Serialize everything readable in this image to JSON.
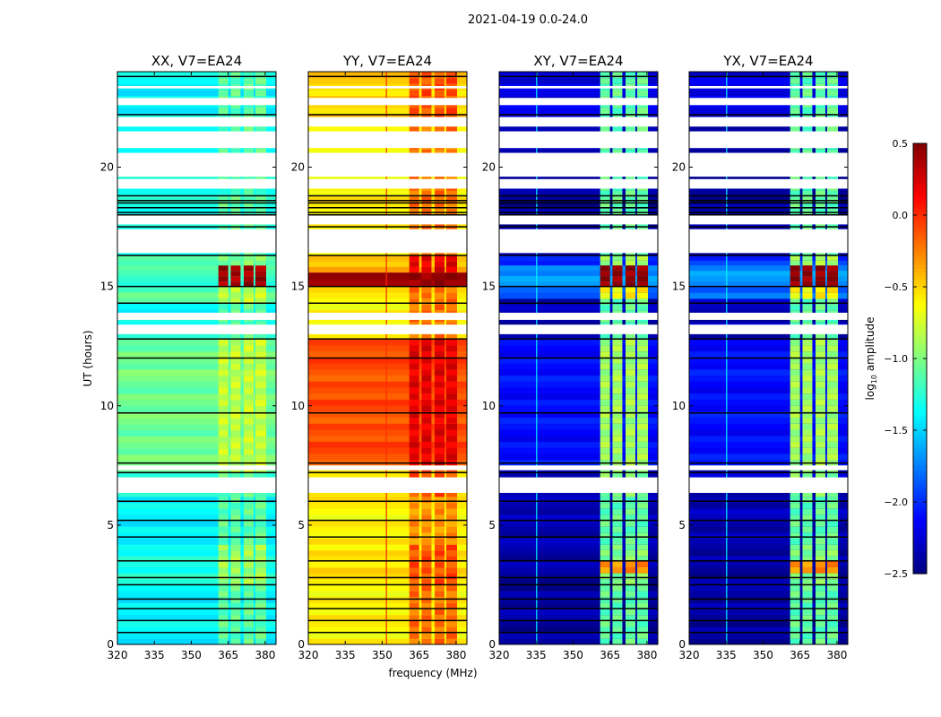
{
  "chart_data": {
    "type": "heatmap",
    "title": "2021-04-19 0.0-24.0",
    "xlabel": "frequency (MHz)",
    "ylabel": "UT (hours)",
    "xlim": [
      320,
      384.4
    ],
    "ylim": [
      0,
      24
    ],
    "xticks": [
      "320",
      "335",
      "350",
      "365",
      "380"
    ],
    "xtick_values": [
      320,
      335,
      350,
      365,
      380
    ],
    "yticks": [
      "0",
      "5",
      "10",
      "15",
      "20"
    ],
    "ytick_values": [
      0,
      5,
      10,
      15,
      20
    ],
    "colorbar": {
      "label_main": "log",
      "label_sub": "10",
      "label_rest": " amplitude",
      "range": [
        -2.5,
        0.5
      ],
      "ticks": [
        "0.5",
        "0.0",
        "−0.5",
        "−1.0",
        "−1.5",
        "−2.0",
        "−2.5"
      ],
      "tick_values": [
        0.5,
        0.0,
        -0.5,
        -1.0,
        -1.5,
        -2.0,
        -2.5
      ],
      "colormap": "jet"
    },
    "rfi_channels_mhz": [
      [
        361,
        365
      ],
      [
        366,
        370
      ],
      [
        371.3,
        375.3
      ],
      [
        376,
        380.4
      ]
    ],
    "flagged_hours": [
      [
        6.35,
        7.0
      ],
      [
        7.3,
        7.5
      ],
      [
        13.0,
        13.4
      ],
      [
        13.6,
        13.9
      ],
      [
        16.4,
        17.4
      ],
      [
        17.6,
        18.0
      ],
      [
        19.1,
        19.5
      ],
      [
        19.6,
        20.6
      ],
      [
        20.8,
        21.5
      ],
      [
        21.7,
        22.1
      ],
      [
        22.6,
        22.9
      ],
      [
        23.3,
        23.4
      ]
    ],
    "gap_lines_hours": [
      0.5,
      1.0,
      1.5,
      1.9,
      2.5,
      2.8,
      3.5,
      4.5,
      5.2,
      6.0,
      7.2,
      7.6,
      9.7,
      12.0,
      12.8,
      14.3,
      15.0,
      16.3,
      17.5,
      18.0,
      18.1,
      18.3,
      18.5,
      18.6,
      18.8,
      22.2,
      23.8
    ],
    "panels": [
      {
        "title": "XX, V7=EA24",
        "segments": [
          [
            0,
            2.5,
            -1.4,
            -1.1
          ],
          [
            2.5,
            4.2,
            -1.3,
            -0.9
          ],
          [
            4.2,
            6.2,
            -1.4,
            -1.1
          ],
          [
            6.2,
            7.2,
            -1.3,
            -1.1
          ],
          [
            7.2,
            12.8,
            -1.05,
            -0.8
          ],
          [
            12.8,
            14.3,
            -1.35,
            -1.1
          ],
          [
            14.3,
            15.0,
            -1.1,
            -0.8
          ],
          [
            15.0,
            15.9,
            -1.2,
            0.4
          ],
          [
            15.9,
            16.3,
            -1.2,
            -1.0
          ],
          [
            16.3,
            18.8,
            -1.3,
            -1.1
          ],
          [
            18.8,
            19.1,
            -1.4,
            -1.2
          ],
          [
            19.1,
            22.0,
            -1.3,
            -1.1
          ],
          [
            22.0,
            24.0,
            -1.4,
            -1.1
          ]
        ],
        "vlines": []
      },
      {
        "title": "YY, V7=EA24",
        "segments": [
          [
            0,
            2.5,
            -0.6,
            -0.2
          ],
          [
            2.5,
            4.2,
            -0.55,
            -0.1
          ],
          [
            4.2,
            6.2,
            -0.6,
            -0.3
          ],
          [
            6.2,
            7.5,
            -0.55,
            -0.1
          ],
          [
            7.5,
            12.8,
            -0.1,
            0.2
          ],
          [
            12.8,
            15.0,
            -0.6,
            -0.2
          ],
          [
            15.0,
            15.6,
            0.45,
            0.45
          ],
          [
            15.6,
            16.3,
            -0.4,
            0.2
          ],
          [
            16.3,
            22.0,
            -0.6,
            -0.2
          ],
          [
            22.0,
            24.0,
            -0.5,
            -0.1
          ]
        ],
        "vlines": [
          [
            351.5,
            0.0
          ]
        ]
      },
      {
        "title": "XY, V7=EA24",
        "segments": [
          [
            0,
            2.5,
            -2.4,
            -1.1
          ],
          [
            2.5,
            3.0,
            -2.4,
            -1.0
          ],
          [
            3.0,
            3.5,
            -2.4,
            -0.3
          ],
          [
            3.5,
            4.2,
            -2.4,
            -1.0
          ],
          [
            4.2,
            6.2,
            -2.35,
            -1.1
          ],
          [
            6.2,
            7.5,
            -2.3,
            -1.0
          ],
          [
            7.5,
            12.8,
            -2.1,
            -0.9
          ],
          [
            12.8,
            14.5,
            -2.35,
            -1.1
          ],
          [
            14.5,
            15.0,
            -1.8,
            -0.6
          ],
          [
            15.0,
            15.9,
            -1.7,
            0.45
          ],
          [
            15.9,
            16.3,
            -2.0,
            -0.9
          ],
          [
            16.3,
            22.0,
            -2.4,
            -1.1
          ],
          [
            22.0,
            24.0,
            -2.2,
            -1.1
          ]
        ],
        "vlines": [
          [
            335,
            -1.4
          ]
        ]
      },
      {
        "title": "YX, V7=EA24",
        "segments": [
          [
            0,
            2.5,
            -2.4,
            -1.1
          ],
          [
            2.5,
            3.0,
            -2.4,
            -1.0
          ],
          [
            3.0,
            3.5,
            -2.4,
            -0.3
          ],
          [
            3.5,
            4.2,
            -2.4,
            -1.0
          ],
          [
            4.2,
            6.2,
            -2.35,
            -1.1
          ],
          [
            6.2,
            7.5,
            -2.3,
            -1.0
          ],
          [
            7.5,
            12.8,
            -2.1,
            -0.9
          ],
          [
            12.8,
            14.5,
            -2.35,
            -1.1
          ],
          [
            14.5,
            15.0,
            -1.8,
            -0.6
          ],
          [
            15.0,
            15.9,
            -1.7,
            0.45
          ],
          [
            15.9,
            16.3,
            -2.0,
            -0.9
          ],
          [
            16.3,
            22.0,
            -2.4,
            -1.1
          ],
          [
            22.0,
            24.0,
            -2.2,
            -1.1
          ]
        ],
        "vlines": [
          [
            335,
            -1.4
          ]
        ]
      }
    ]
  }
}
